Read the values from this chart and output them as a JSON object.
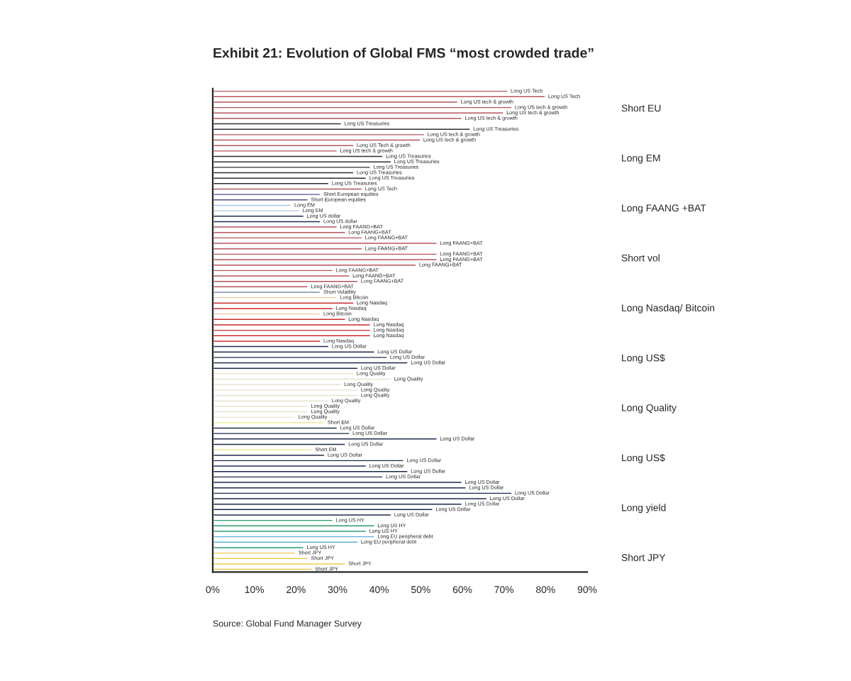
{
  "chart_data": {
    "type": "bar",
    "orientation": "horizontal",
    "title": "Exhibit 21: Evolution of Global FMS “most crowded trade”",
    "categories": [
      null,
      null,
      null,
      null,
      null,
      null,
      null,
      null,
      null,
      null,
      null,
      null,
      null,
      null,
      null,
      null,
      null,
      null,
      null,
      null,
      null,
      null,
      null,
      null,
      null,
      null,
      null,
      null,
      null,
      null,
      null,
      null,
      null,
      null,
      null,
      null,
      null,
      null,
      null,
      null,
      null,
      null,
      null,
      null,
      null,
      null,
      null,
      null,
      null,
      null,
      null,
      null,
      null,
      null,
      null,
      null,
      null,
      null,
      null,
      null,
      null,
      null,
      null,
      null,
      null,
      null,
      null,
      null,
      null,
      null,
      null,
      null,
      null,
      null,
      null,
      null,
      null,
      null,
      null,
      null,
      null,
      null,
      null,
      null,
      null,
      null,
      null,
      null,
      null
    ],
    "values": [
      71,
      80,
      59,
      72,
      70,
      60,
      31,
      62,
      51,
      50,
      34,
      30,
      41,
      43,
      38,
      34,
      37,
      28,
      36,
      26,
      23,
      19,
      21,
      22,
      26,
      30,
      32,
      36,
      54,
      36,
      54,
      54,
      49,
      29,
      33,
      35,
      23,
      26,
      30,
      34,
      29,
      26,
      32,
      38,
      38,
      38,
      26,
      28,
      39,
      42,
      47,
      35,
      34,
      43,
      31,
      35,
      35,
      28,
      23,
      23,
      20,
      27,
      30,
      33,
      54,
      32,
      24,
      27,
      46,
      37,
      47,
      41,
      60,
      61,
      72,
      66,
      60,
      53,
      43,
      29,
      39,
      37,
      39,
      35,
      22,
      20,
      23,
      32,
      24
    ],
    "colors": [
      "#b5555a",
      "#b5555a",
      "#b5555a",
      "#b5555a",
      "#b5555a",
      "#b5555a",
      "#2f2f2f",
      "#2f2f2f",
      "#b5555a",
      "#b5555a",
      "#b5555a",
      "#b5555a",
      "#2f2f2f",
      "#2f2f2f",
      "#2f2f2f",
      "#2f2f2f",
      "#2f2f2f",
      "#2f2f2f",
      "#b5555a",
      "#5a4a8a",
      "#5a4a8a",
      "#a9cbe0",
      "#a9cbe0",
      "#1c2a4a",
      "#1c2a4a",
      "#b5555a",
      "#b5555a",
      "#b5555a",
      "#b5555a",
      "#b5555a",
      "#b5555a",
      "#b5555a",
      "#b5555a",
      "#b5555a",
      "#b5555a",
      "#b5555a",
      "#b5555a",
      "#7c8db0",
      "#e8c9a0",
      "#cc2a2a",
      "#cc2a2a",
      "#e8c9a0",
      "#cc2a2a",
      "#cc2a2a",
      "#cc2a2a",
      "#cc2a2a",
      "#cc2a2a",
      "#1c2a4a",
      "#1c2a4a",
      "#1c2a4a",
      "#1c2a4a",
      "#1c2a4a",
      "#e6e2cf",
      "#e6e2cf",
      "#e6e2cf",
      "#e6e2cf",
      "#e6e2cf",
      "#e6e2cf",
      "#e6e2cf",
      "#e6e2cf",
      "#e6e2cf",
      "#eeea9a",
      "#1c2a4a",
      "#1c2a4a",
      "#1c2a4a",
      "#1c2a4a",
      "#eeea9a",
      "#1c2a4a",
      "#1c2a4a",
      "#1c2a4a",
      "#1c2a4a",
      "#1c2a4a",
      "#1c2a4a",
      "#1c2a4a",
      "#1c2a4a",
      "#1c2a4a",
      "#1c2a4a",
      "#1c2a4a",
      "#1c2a4a",
      "#2a9a6a",
      "#2a9a6a",
      "#2a9a6a",
      "#5ab0d0",
      "#5ab0d0",
      "#2a9a6a",
      "#f0c850",
      "#f0c850",
      "#f0c850",
      "#f0c850"
    ],
    "value_labels": [
      "Long US Tech",
      "Long US Tech",
      "Long US tech & growth",
      "Long US tech & growth",
      "Long US tech & growth",
      "Long US tech & growth",
      "Long US Treasuries",
      "Long US Treasuries",
      "Long US tech & growth",
      "Long US tech & growth",
      "Long US Tech & growth",
      "Long US tech & growth",
      "Long US Treasuries",
      "Long US Treasuries",
      "Long US Treasuries",
      "Long US Treasuries",
      "Long US Treasuries",
      "Long US Treasuries",
      "Long US Tech",
      "Short European equities",
      "Short European equities",
      "Long EM",
      "Long EM",
      "Long US dollar",
      "Long US dollar",
      "Long FAANG+BAT",
      "Long FAANG+BAT",
      "Long FAANG+BAT",
      "Long FAANG+BAT",
      "Long FAANG+BAT",
      "Long FAANG+BAT",
      "Long FAANG+BAT",
      "Long FAANG+BAT",
      "Long FAANG+BAT",
      "Long FAANG+BAT",
      "Long FAANG+BAT",
      "Long FAANG+BAT",
      "Short Volatility",
      "Long Bitcoin",
      "Long Nasdaq",
      "Long Nasdaq",
      "Long Bitcoin",
      "Long Nasdaq",
      "Long Nasdaq",
      "Long Nasdaq",
      "Long Nasdaq",
      "Long Nasdaq",
      "Long US Dollar",
      "Long US Dollar",
      "Long US Dollar",
      "Long US Dollar",
      "Long US Dollar",
      "Long Quality",
      "Long Quality",
      "Long Quality",
      "Long Quality",
      "Long Quality",
      "Long Quality",
      "Long Quality",
      "Long Quality",
      "Long Quality",
      "Short EM",
      "Long US Dollar",
      "Long US Dollar",
      "Long US Dollar",
      "Long US Dollar",
      "Short EM",
      "Long US Dollar",
      "Long US Dollar",
      "Long US Dollar",
      "Long US Dollar",
      "Long US Dollar",
      "Long US Dollar",
      "Long US Dollar",
      "Long US Dollar",
      "Long US Dollar",
      "Long US Dollar",
      "Long US Dollar",
      "Long US Dollar",
      "Long US HY",
      "Long US HY",
      "Long US HY",
      "Long EU peripheral debt",
      "Long EU peripheral debt",
      "Long US HY",
      "Short JPY",
      "Short JPY",
      "Short JPY",
      "Short JPY"
    ],
    "xlim": [
      0,
      90
    ],
    "xticks": [
      {
        "value": 0,
        "label": "0%"
      },
      {
        "value": 10,
        "label": "10%"
      },
      {
        "value": 20,
        "label": "20%"
      },
      {
        "value": 30,
        "label": "30%"
      },
      {
        "value": 40,
        "label": "40%"
      },
      {
        "value": 50,
        "label": "50%"
      },
      {
        "value": 60,
        "label": "60%"
      },
      {
        "value": 70,
        "label": "70%"
      },
      {
        "value": 80,
        "label": "80%"
      },
      {
        "value": 90,
        "label": "90%"
      }
    ],
    "annotations": [
      "Short EU",
      "Long EM",
      "Long FAANG +BAT",
      "Short vol",
      "Long Nasdaq/ Bitcoin",
      "Long US$",
      "Long Quality",
      "Long US$",
      "Long yield",
      "Short JPY",
      "Source: Global Fund Manager Survey"
    ]
  }
}
